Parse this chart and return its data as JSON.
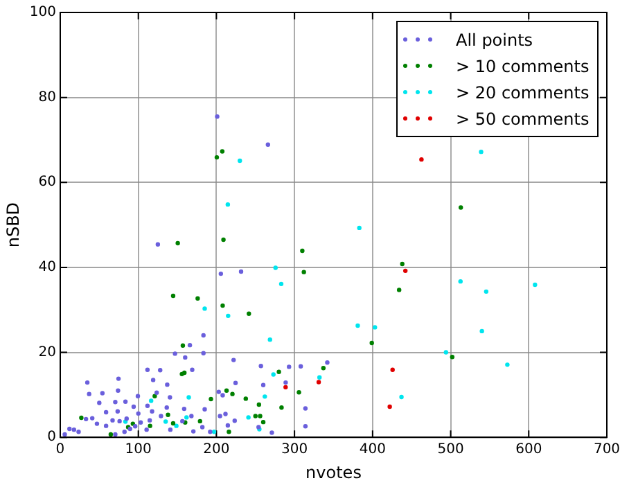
{
  "chart_data": {
    "type": "scatter",
    "xlabel": "nvotes",
    "ylabel": "nSBD",
    "xlim": [
      0,
      700
    ],
    "ylim": [
      0,
      100
    ],
    "xticks": [
      0,
      100,
      200,
      300,
      400,
      500,
      600,
      700
    ],
    "yticks": [
      0,
      20,
      40,
      60,
      80,
      100
    ],
    "grid": true,
    "legend": "top right",
    "marker": "circle",
    "series": [
      {
        "name": "All points",
        "color": "#6a5fdc",
        "x": [
          201,
          266,
          125,
          205.7,
          231.6,
          183.4,
          166,
          147,
          183.4,
          160,
          222,
          257,
          293,
          308,
          342,
          260,
          314,
          314,
          254,
          271,
          111.7,
          128,
          169,
          34.7,
          74.6,
          37,
          54,
          74,
          83.5,
          99.4,
          119,
          137,
          123.5,
          140.5,
          203,
          208,
          224.5,
          288.7,
          33,
          67,
          47,
          11.8,
          17.6,
          23.5,
          5.8,
          58.7,
          73.5,
          76,
          85,
          89.4,
          100,
          103,
          110.6,
          96,
          82.3,
          70.5,
          114.6,
          129,
          156.4,
          141,
          168,
          170.5,
          182,
          192,
          204.6,
          211.6,
          214.6,
          223.4,
          111.7,
          136.4,
          158.7,
          185,
          117.6,
          58.7,
          41,
          94,
          70.5,
          50
        ],
        "values": [
          75.5,
          68.9,
          45.4,
          38.5,
          39,
          24,
          21.7,
          19.7,
          19.8,
          18.8,
          18.2,
          16.8,
          16.6,
          16.7,
          17.6,
          12.3,
          6.8,
          2.6,
          2.4,
          1.1,
          15.9,
          15.8,
          15.9,
          12.9,
          13.8,
          10.2,
          10.4,
          11,
          8.4,
          9.7,
          13.5,
          12.4,
          10.5,
          9.4,
          10.7,
          9.9,
          12.8,
          12.9,
          4.3,
          4,
          3.2,
          2,
          1.8,
          1.3,
          0.7,
          2.7,
          6.1,
          3.8,
          4.4,
          2,
          5.6,
          3.5,
          1.8,
          2.6,
          1.3,
          0.7,
          4,
          5,
          3.8,
          1.8,
          5,
          1.4,
          2.4,
          1.3,
          5,
          5.5,
          2.8,
          3.9,
          7.4,
          7,
          6.7,
          6.6,
          6.1,
          5.9,
          4.5,
          7.2,
          8.3,
          8.1
        ]
      },
      {
        "name": "> 10 comments",
        "color": "#008000",
        "x": [
          200.5,
          207.5,
          513,
          150.5,
          209,
          310,
          312,
          438,
          434,
          399,
          502,
          280,
          337,
          305.7,
          254.5,
          283.4,
          250,
          256,
          260,
          144.6,
          176,
          208,
          241.6,
          157,
          155.8,
          159,
          121,
          193,
          213,
          220.5,
          237.6,
          27,
          87,
          93,
          115,
          144.6,
          160,
          179,
          216,
          138,
          64.7
        ],
        "values": [
          65.9,
          67.3,
          54.1,
          45.7,
          46.5,
          43.9,
          38.9,
          40.8,
          34.7,
          22.2,
          18.9,
          15.4,
          16.3,
          10.6,
          7.7,
          7,
          5,
          5,
          3.6,
          33.3,
          32.7,
          31,
          29.1,
          21.6,
          14.9,
          15.2,
          9.7,
          9,
          11,
          10.2,
          9.1,
          4.6,
          2.4,
          3.2,
          2.7,
          3.3,
          3.5,
          3.8,
          1.3,
          5.3,
          0.7
        ]
      },
      {
        "name": "> 20 comments",
        "color": "#00e5ee",
        "x": [
          230,
          539,
          214.6,
          383,
          275.7,
          283,
          512.6,
          545.5,
          608,
          381,
          403,
          268.6,
          540,
          494,
          572.6,
          273,
          332,
          437,
          262,
          255,
          185,
          215,
          116.4,
          164.6,
          83.5,
          135,
          148.7,
          197,
          241,
          161.7
        ],
        "values": [
          65.1,
          67.2,
          54.8,
          49.3,
          39.9,
          36.1,
          36.7,
          34.3,
          35.9,
          26.3,
          25.9,
          23,
          25,
          20,
          17.1,
          14.8,
          14.1,
          9.5,
          9.6,
          1.9,
          30.3,
          28.6,
          8.6,
          9.4,
          3.7,
          3.7,
          2.7,
          1.3,
          4.7,
          4.7
        ]
      },
      {
        "name": "> 50 comments",
        "color": "#e00000",
        "x": [
          462.6,
          442,
          331,
          425.6,
          288.6,
          422
        ],
        "values": [
          65.4,
          39.2,
          13,
          15.9,
          11.8,
          7.2
        ]
      }
    ]
  }
}
